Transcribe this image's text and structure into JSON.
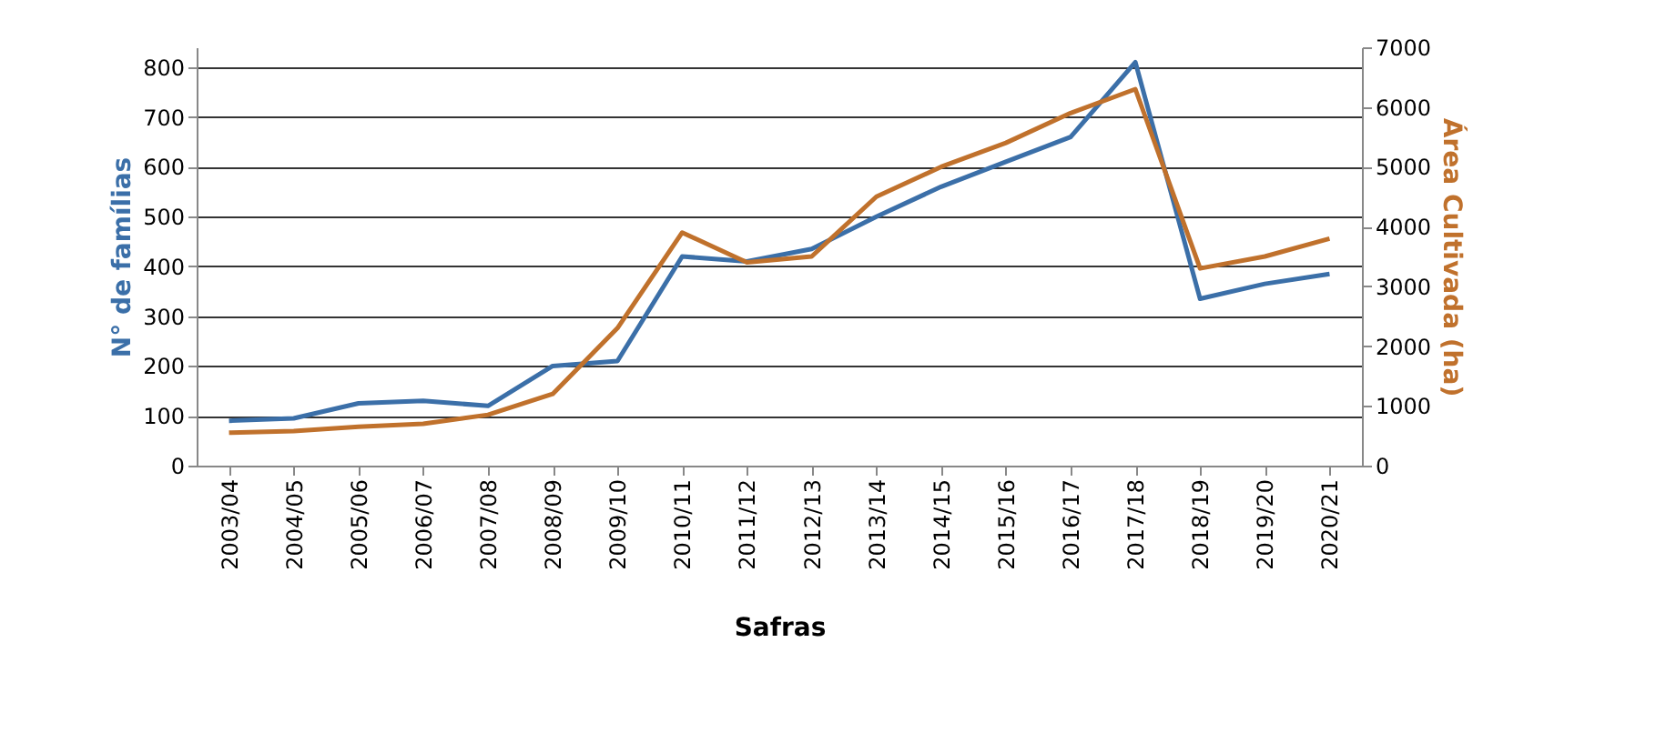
{
  "chart_data": {
    "type": "line",
    "xlabel": "Safras",
    "ylabel": "N° de famílias",
    "y2label": "Área Cultivada (ha)",
    "categories": [
      "2003/04",
      "2004/05",
      "2005/06",
      "2006/07",
      "2007/08",
      "2008/09",
      "2009/10",
      "2010/11",
      "2011/12",
      "2012/13",
      "2013/14",
      "2014/15",
      "2015/16",
      "2016/17",
      "2017/18",
      "2018/19",
      "2019/20",
      "2020/21"
    ],
    "series": [
      {
        "color": "#3b6fa8",
        "values": [
          90,
          95,
          125,
          130,
          120,
          200,
          210,
          420,
          410,
          435,
          500,
          560,
          610,
          660,
          810,
          335,
          365,
          385
        ]
      },
      {
        "color": "#c0712c",
        "axis": "y2",
        "values": [
          550,
          580,
          650,
          700,
          850,
          1200,
          2300,
          3900,
          3400,
          3500,
          4500,
          5000,
          5400,
          5900,
          6300,
          3300,
          3500,
          3800
        ]
      }
    ],
    "ylim": [
      0,
      840
    ],
    "yticks": [
      0,
      100,
      200,
      300,
      400,
      500,
      600,
      700,
      800
    ],
    "y2lim": [
      0,
      7000
    ],
    "y2ticks": [
      0,
      1000,
      2000,
      3000,
      4000,
      5000,
      6000,
      7000
    ],
    "grid": "y",
    "marker": "none",
    "line_style": "solid"
  }
}
